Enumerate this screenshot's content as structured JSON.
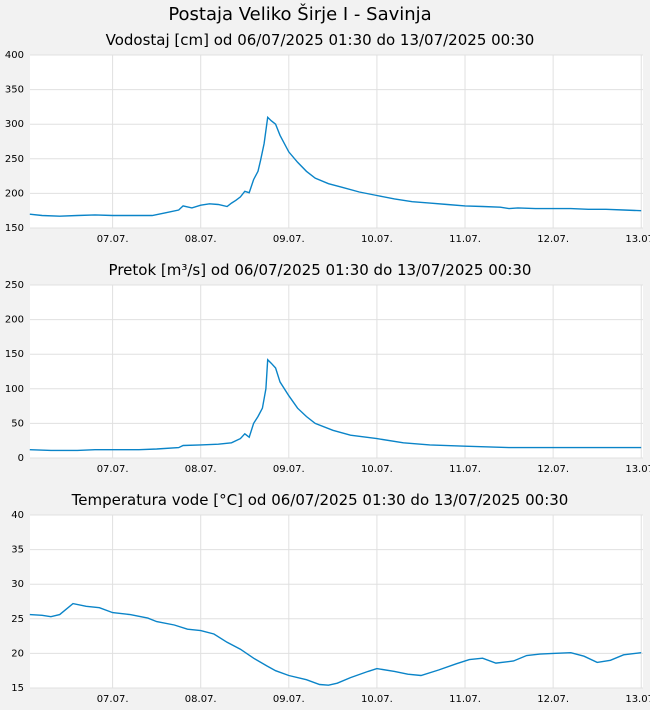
{
  "page_title": "Postaja Veliko Širje I - Savinja",
  "colors": {
    "background": "#f2f2f2",
    "plot_background": "#ffffff",
    "line": "#0a84c8",
    "grid": "#e0e0e0"
  },
  "chart_data": [
    {
      "type": "line",
      "title": "Vodostaj [cm] od 06/07/2025 01:30 do 13/07/2025 00:30",
      "xlabel": "",
      "ylabel": "",
      "x_range_days": [
        6.0625,
        13.02
      ],
      "ylim": [
        150,
        400
      ],
      "yticks": [
        150,
        200,
        250,
        300,
        350,
        400
      ],
      "x_tick_labels": [
        "07.07.",
        "08.07.",
        "09.07.",
        "10.07.",
        "11.07.",
        "12.07.",
        "13.07."
      ],
      "grid": true,
      "series": [
        {
          "x": [
            6.06,
            6.2,
            6.4,
            6.6,
            6.8,
            7.0,
            7.2,
            7.4,
            7.45,
            7.6,
            7.75,
            7.8,
            7.9,
            8.0,
            8.1,
            8.2,
            8.3,
            8.35,
            8.4,
            8.45,
            8.5,
            8.55,
            8.6,
            8.65,
            8.68,
            8.72,
            8.76,
            8.8,
            8.85,
            8.9,
            9.0,
            9.1,
            9.2,
            9.3,
            9.45,
            9.6,
            9.8,
            10.0,
            10.2,
            10.4,
            10.6,
            10.8,
            11.0,
            11.2,
            11.4,
            11.5,
            11.6,
            11.8,
            12.0,
            12.2,
            12.4,
            12.6,
            12.8,
            13.0
          ],
          "y": [
            170,
            168,
            167,
            168,
            169,
            168,
            168,
            168,
            168,
            172,
            176,
            182,
            179,
            183,
            185,
            184,
            181,
            186,
            190,
            195,
            203,
            201,
            220,
            232,
            248,
            272,
            310,
            305,
            300,
            284,
            260,
            245,
            232,
            222,
            214,
            209,
            202,
            197,
            192,
            188,
            186,
            184,
            182,
            181,
            180,
            178,
            179,
            178,
            178,
            178,
            177,
            177,
            176,
            175
          ]
        }
      ]
    },
    {
      "type": "line",
      "title": "Pretok [m³/s] od 06/07/2025 01:30 do 13/07/2025 00:30",
      "xlabel": "",
      "ylabel": "",
      "x_range_days": [
        6.0625,
        13.02
      ],
      "ylim": [
        0,
        250
      ],
      "yticks": [
        0,
        50,
        100,
        150,
        200,
        250
      ],
      "x_tick_labels": [
        "07.07.",
        "08.07.",
        "09.07.",
        "10.07.",
        "11.07.",
        "12.07.",
        "13.07."
      ],
      "grid": true,
      "series": [
        {
          "x": [
            6.06,
            6.3,
            6.6,
            6.8,
            7.0,
            7.3,
            7.5,
            7.75,
            7.8,
            8.0,
            8.2,
            8.35,
            8.45,
            8.5,
            8.55,
            8.6,
            8.65,
            8.7,
            8.74,
            8.76,
            8.8,
            8.85,
            8.9,
            9.0,
            9.1,
            9.2,
            9.3,
            9.5,
            9.7,
            10.0,
            10.3,
            10.6,
            11.0,
            11.5,
            12.0,
            12.5,
            13.0
          ],
          "y": [
            12,
            11,
            11,
            12,
            12,
            12,
            13,
            15,
            18,
            19,
            20,
            22,
            28,
            35,
            30,
            50,
            60,
            72,
            100,
            142,
            137,
            130,
            110,
            90,
            72,
            60,
            50,
            40,
            33,
            28,
            22,
            19,
            17,
            15,
            15,
            15,
            15
          ]
        }
      ]
    },
    {
      "type": "line",
      "title": "Temperatura vode [°C] od 06/07/2025 01:30 do 13/07/2025 00:30",
      "xlabel": "",
      "ylabel": "",
      "x_range_days": [
        6.0625,
        13.02
      ],
      "ylim": [
        15,
        40
      ],
      "yticks": [
        15,
        20,
        25,
        30,
        35,
        40
      ],
      "x_tick_labels": [
        "07.07.",
        "08.07.",
        "09.07.",
        "10.07.",
        "11.07.",
        "12.07.",
        "13.07."
      ],
      "grid": true,
      "series": [
        {
          "x": [
            6.06,
            6.2,
            6.3,
            6.4,
            6.55,
            6.7,
            6.85,
            7.0,
            7.2,
            7.4,
            7.5,
            7.7,
            7.85,
            8.0,
            8.15,
            8.3,
            8.45,
            8.6,
            8.75,
            8.85,
            9.0,
            9.2,
            9.35,
            9.45,
            9.55,
            9.7,
            9.9,
            10.0,
            10.2,
            10.35,
            10.5,
            10.7,
            10.9,
            11.05,
            11.2,
            11.35,
            11.55,
            11.7,
            11.85,
            12.0,
            12.2,
            12.35,
            12.5,
            12.65,
            12.8,
            13.0
          ],
          "y": [
            25.6,
            25.5,
            25.3,
            25.6,
            27.2,
            26.8,
            26.6,
            25.9,
            25.6,
            25.1,
            24.6,
            24.1,
            23.5,
            23.3,
            22.8,
            21.6,
            20.6,
            19.3,
            18.2,
            17.5,
            16.8,
            16.2,
            15.5,
            15.4,
            15.7,
            16.5,
            17.4,
            17.8,
            17.4,
            17.0,
            16.8,
            17.6,
            18.5,
            19.1,
            19.3,
            18.6,
            18.9,
            19.7,
            19.9,
            20.0,
            20.1,
            19.6,
            18.7,
            19.0,
            19.8,
            20.1
          ]
        }
      ]
    }
  ]
}
